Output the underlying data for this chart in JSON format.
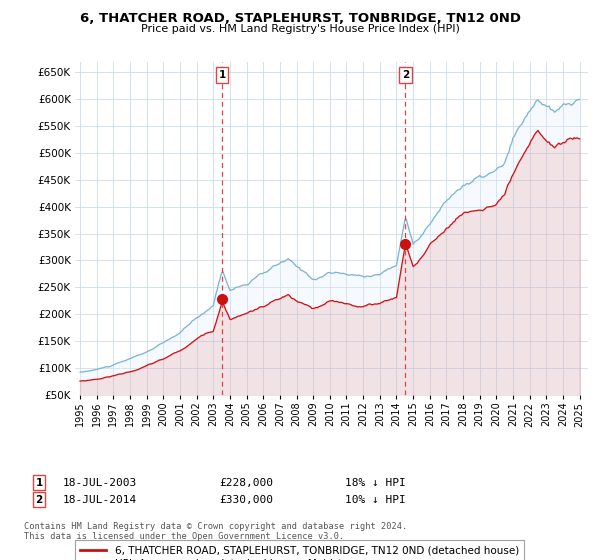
{
  "title": "6, THATCHER ROAD, STAPLEHURST, TONBRIDGE, TN12 0ND",
  "subtitle": "Price paid vs. HM Land Registry's House Price Index (HPI)",
  "bg_color": "#ffffff",
  "grid_color": "#ccddee",
  "hpi_color": "#7ab3d4",
  "hpi_fill_color": "#ddeeff",
  "sale_color": "#cc1111",
  "vline_color": "#dd4444",
  "sale1_date": 2003.54,
  "sale1_price": 228000,
  "sale2_date": 2014.54,
  "sale2_price": 330000,
  "line1_label": "6, THATCHER ROAD, STAPLEHURST, TONBRIDGE, TN12 0ND (detached house)",
  "line2_label": "HPI: Average price, detached house, Maidstone",
  "footnote": "Contains HM Land Registry data © Crown copyright and database right 2024.\nThis data is licensed under the Open Government Licence v3.0.",
  "ylim": [
    50000,
    670000
  ],
  "xlim_left": 1994.7,
  "xlim_right": 2025.5
}
